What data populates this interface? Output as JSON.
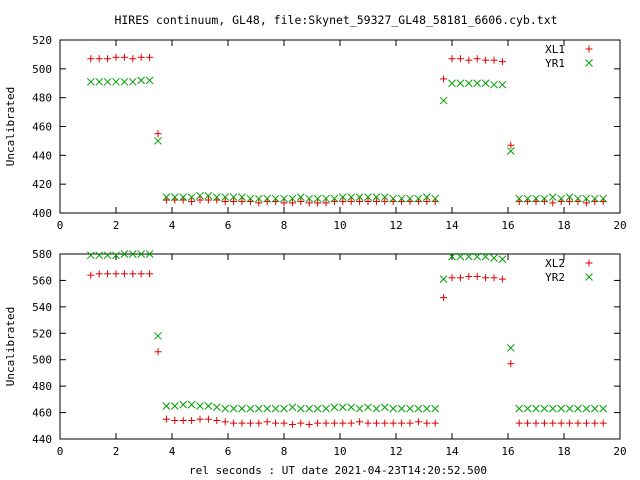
{
  "figure": {
    "title": "HIRES continuum, GL48, file:Skynet_59327_GL48_58181_6606.cyb.txt",
    "xlabel": "rel seconds : UT date 2021-04-23T14:20:52.500"
  },
  "chart_data": [
    {
      "type": "scatter",
      "ylabel": "Uncalibrated",
      "xlim": [
        0,
        20
      ],
      "ylim": [
        400,
        520
      ],
      "xticks": [
        0,
        2,
        4,
        6,
        8,
        10,
        12,
        14,
        16,
        18,
        20
      ],
      "yticks": [
        400,
        420,
        440,
        460,
        480,
        500,
        520
      ],
      "grid": false,
      "legend": "top-right",
      "series": [
        {
          "name": "XL1",
          "marker": "plus",
          "color": "#e00000",
          "x": [
            1.1,
            1.4,
            1.7,
            2.0,
            2.3,
            2.6,
            2.9,
            3.2,
            3.5,
            3.8,
            4.1,
            4.4,
            4.7,
            5.0,
            5.3,
            5.6,
            5.9,
            6.2,
            6.5,
            6.8,
            7.1,
            7.4,
            7.7,
            8.0,
            8.3,
            8.6,
            8.9,
            9.2,
            9.5,
            9.8,
            10.1,
            10.4,
            10.7,
            11.0,
            11.3,
            11.6,
            11.9,
            12.2,
            12.5,
            12.8,
            13.1,
            13.4,
            13.7,
            14.0,
            14.3,
            14.6,
            14.9,
            15.2,
            15.5,
            15.8,
            16.1,
            16.4,
            16.7,
            17.0,
            17.3,
            17.6,
            17.9,
            18.2,
            18.5,
            18.8,
            19.1,
            19.4
          ],
          "y": [
            507,
            507,
            507,
            508,
            508,
            507,
            508,
            508,
            455,
            409,
            409,
            409,
            408,
            409,
            409,
            409,
            408,
            408,
            408,
            408,
            407,
            408,
            408,
            407,
            407,
            408,
            407,
            407,
            407,
            408,
            408,
            408,
            408,
            408,
            408,
            408,
            408,
            408,
            408,
            408,
            408,
            408,
            493,
            507,
            507,
            506,
            507,
            506,
            506,
            505,
            447,
            408,
            408,
            408,
            408,
            407,
            408,
            408,
            408,
            407,
            408,
            408
          ]
        },
        {
          "name": "YR1",
          "marker": "cross",
          "color": "#00a000",
          "x": [
            1.1,
            1.4,
            1.7,
            2.0,
            2.3,
            2.6,
            2.9,
            3.2,
            3.5,
            3.8,
            4.1,
            4.4,
            4.7,
            5.0,
            5.3,
            5.6,
            5.9,
            6.2,
            6.5,
            6.8,
            7.1,
            7.4,
            7.7,
            8.0,
            8.3,
            8.6,
            8.9,
            9.2,
            9.5,
            9.8,
            10.1,
            10.4,
            10.7,
            11.0,
            11.3,
            11.6,
            11.9,
            12.2,
            12.5,
            12.8,
            13.1,
            13.4,
            13.7,
            14.0,
            14.3,
            14.6,
            14.9,
            15.2,
            15.5,
            15.8,
            16.1,
            16.4,
            16.7,
            17.0,
            17.3,
            17.6,
            17.9,
            18.2,
            18.5,
            18.8,
            19.1,
            19.4
          ],
          "y": [
            491,
            491,
            491,
            491,
            491,
            491,
            492,
            492,
            450,
            411,
            411,
            411,
            411,
            412,
            412,
            411,
            411,
            411,
            411,
            410,
            410,
            410,
            410,
            410,
            410,
            411,
            410,
            410,
            410,
            410,
            411,
            411,
            411,
            411,
            411,
            411,
            410,
            410,
            410,
            410,
            411,
            410,
            478,
            490,
            490,
            490,
            490,
            490,
            489,
            489,
            443,
            410,
            410,
            410,
            410,
            411,
            410,
            411,
            410,
            410,
            410,
            410
          ]
        }
      ]
    },
    {
      "type": "scatter",
      "ylabel": "Uncalibrated",
      "xlim": [
        0,
        20
      ],
      "ylim": [
        440,
        580
      ],
      "xticks": [
        0,
        2,
        4,
        6,
        8,
        10,
        12,
        14,
        16,
        18,
        20
      ],
      "yticks": [
        440,
        460,
        480,
        500,
        520,
        540,
        560,
        580
      ],
      "grid": false,
      "legend": "top-right",
      "series": [
        {
          "name": "XL2",
          "marker": "plus",
          "color": "#e00000",
          "x": [
            1.1,
            1.4,
            1.7,
            2.0,
            2.3,
            2.6,
            2.9,
            3.2,
            3.5,
            3.8,
            4.1,
            4.4,
            4.7,
            5.0,
            5.3,
            5.6,
            5.9,
            6.2,
            6.5,
            6.8,
            7.1,
            7.4,
            7.7,
            8.0,
            8.3,
            8.6,
            8.9,
            9.2,
            9.5,
            9.8,
            10.1,
            10.4,
            10.7,
            11.0,
            11.3,
            11.6,
            11.9,
            12.2,
            12.5,
            12.8,
            13.1,
            13.4,
            13.7,
            14.0,
            14.3,
            14.6,
            14.9,
            15.2,
            15.5,
            15.8,
            16.1,
            16.4,
            16.7,
            17.0,
            17.3,
            17.6,
            17.9,
            18.2,
            18.5,
            18.8,
            19.1,
            19.4
          ],
          "y": [
            564,
            565,
            565,
            565,
            565,
            565,
            565,
            565,
            506,
            455,
            454,
            454,
            454,
            455,
            455,
            454,
            453,
            452,
            452,
            452,
            452,
            453,
            452,
            452,
            451,
            452,
            451,
            452,
            452,
            452,
            452,
            452,
            453,
            452,
            452,
            452,
            452,
            452,
            452,
            453,
            452,
            452,
            547,
            562,
            562,
            563,
            563,
            562,
            562,
            561,
            497,
            452,
            452,
            452,
            452,
            452,
            452,
            452,
            452,
            452,
            452,
            452
          ]
        },
        {
          "name": "YR2",
          "marker": "cross",
          "color": "#00a000",
          "x": [
            1.1,
            1.4,
            1.7,
            2.0,
            2.3,
            2.6,
            2.9,
            3.2,
            3.5,
            3.8,
            4.1,
            4.4,
            4.7,
            5.0,
            5.3,
            5.6,
            5.9,
            6.2,
            6.5,
            6.8,
            7.1,
            7.4,
            7.7,
            8.0,
            8.3,
            8.6,
            8.9,
            9.2,
            9.5,
            9.8,
            10.1,
            10.4,
            10.7,
            11.0,
            11.3,
            11.6,
            11.9,
            12.2,
            12.5,
            12.8,
            13.1,
            13.4,
            13.7,
            14.0,
            14.3,
            14.6,
            14.9,
            15.2,
            15.5,
            15.8,
            16.1,
            16.4,
            16.7,
            17.0,
            17.3,
            17.6,
            17.9,
            18.2,
            18.5,
            18.8,
            19.1,
            19.4
          ],
          "y": [
            579,
            579,
            579,
            579,
            580,
            580,
            580,
            580,
            518,
            465,
            465,
            466,
            466,
            465,
            465,
            464,
            463,
            463,
            463,
            463,
            463,
            463,
            463,
            463,
            464,
            463,
            463,
            463,
            463,
            464,
            464,
            464,
            463,
            464,
            463,
            464,
            463,
            463,
            463,
            463,
            463,
            463,
            561,
            578,
            578,
            578,
            578,
            578,
            577,
            576,
            509,
            463,
            463,
            463,
            463,
            463,
            463,
            463,
            463,
            463,
            463,
            463
          ]
        }
      ]
    }
  ]
}
